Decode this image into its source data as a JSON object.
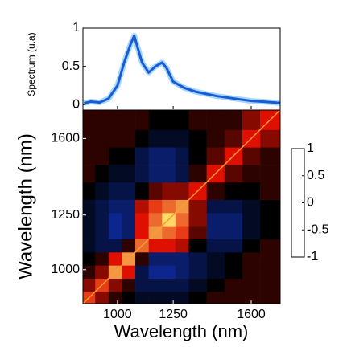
{
  "chart_data": [
    {
      "type": "line",
      "ylabel": "Spectrum (u.a)",
      "color": "#1a5ad8",
      "x": [
        850,
        880,
        920,
        960,
        1000,
        1030,
        1060,
        1075,
        1090,
        1110,
        1140,
        1170,
        1200,
        1220,
        1250,
        1300,
        1350,
        1400,
        1450,
        1500,
        1550,
        1600,
        1650,
        1700,
        1730
      ],
      "values": [
        0.02,
        0.04,
        0.03,
        0.08,
        0.25,
        0.55,
        0.8,
        0.9,
        0.75,
        0.55,
        0.42,
        0.5,
        0.55,
        0.48,
        0.3,
        0.22,
        0.17,
        0.14,
        0.11,
        0.09,
        0.07,
        0.05,
        0.04,
        0.03,
        0.02
      ],
      "xlim": [
        845,
        1730
      ],
      "ylim": [
        -0.07,
        1
      ],
      "yticks": [
        0,
        0.5,
        1
      ]
    },
    {
      "type": "heatmap",
      "xlabel": "Wavelength (nm)",
      "ylabel": "Wavelength (nm)",
      "xlim": [
        845,
        1730
      ],
      "ylim": [
        845,
        1730
      ],
      "xticks": [
        1000,
        1250,
        1600
      ],
      "yticks": [
        1000,
        1250,
        1600
      ],
      "bins": [
        845,
        900,
        960,
        1020,
        1080,
        1140,
        1200,
        1260,
        1320,
        1400,
        1480,
        1560,
        1640,
        1730
      ],
      "z": [
        [
          0.6,
          0.3,
          0.1,
          0.0,
          -0.1,
          -0.1,
          -0.1,
          -0.1,
          0.0,
          0.1,
          0.1,
          0.1,
          0.1
        ],
        [
          0.3,
          0.6,
          0.3,
          0.1,
          -0.2,
          -0.2,
          -0.2,
          -0.2,
          -0.1,
          0.0,
          0.1,
          0.1,
          0.1
        ],
        [
          0.1,
          0.3,
          0.8,
          0.5,
          -0.2,
          -0.4,
          -0.4,
          -0.3,
          -0.2,
          -0.1,
          0.0,
          0.1,
          0.1
        ],
        [
          0.0,
          0.1,
          0.5,
          0.8,
          0.1,
          -0.3,
          -0.3,
          -0.3,
          -0.2,
          -0.1,
          0.0,
          0.1,
          0.1
        ],
        [
          -0.1,
          -0.2,
          -0.2,
          0.1,
          0.7,
          0.5,
          0.5,
          0.4,
          0.0,
          -0.2,
          -0.2,
          0.0,
          0.1
        ],
        [
          -0.1,
          -0.2,
          -0.4,
          -0.3,
          0.5,
          0.8,
          0.7,
          0.6,
          0.2,
          -0.3,
          -0.3,
          -0.1,
          0.0
        ],
        [
          -0.1,
          -0.2,
          -0.4,
          -0.3,
          0.5,
          0.7,
          0.95,
          0.7,
          0.3,
          -0.3,
          -0.3,
          -0.1,
          0.0
        ],
        [
          -0.1,
          -0.2,
          -0.3,
          -0.3,
          0.4,
          0.6,
          0.7,
          0.8,
          0.3,
          -0.2,
          -0.2,
          -0.1,
          0.0
        ],
        [
          0.0,
          -0.1,
          -0.2,
          -0.2,
          0.0,
          0.2,
          0.3,
          0.3,
          0.5,
          0.1,
          0.0,
          0.0,
          0.1
        ],
        [
          0.1,
          0.0,
          -0.1,
          -0.1,
          -0.2,
          -0.3,
          -0.3,
          -0.2,
          0.1,
          0.5,
          0.2,
          0.1,
          0.1
        ],
        [
          0.1,
          0.1,
          0.0,
          0.0,
          -0.2,
          -0.3,
          -0.3,
          -0.2,
          0.0,
          0.2,
          0.5,
          0.2,
          0.1
        ],
        [
          0.1,
          0.1,
          0.1,
          0.1,
          0.0,
          -0.1,
          -0.1,
          -0.1,
          0.0,
          0.1,
          0.2,
          0.5,
          0.3
        ],
        [
          0.1,
          0.1,
          0.1,
          0.1,
          0.1,
          0.0,
          0.0,
          0.0,
          0.1,
          0.1,
          0.1,
          0.3,
          0.5
        ]
      ],
      "colormap": [
        "#000070",
        "#1030b0",
        "#000000",
        "#e01000",
        "#fff070"
      ],
      "colorbar_lim": [
        -1,
        1
      ],
      "colorbar_ticks": [
        -1,
        -0.5,
        0,
        0.5,
        1
      ]
    }
  ]
}
